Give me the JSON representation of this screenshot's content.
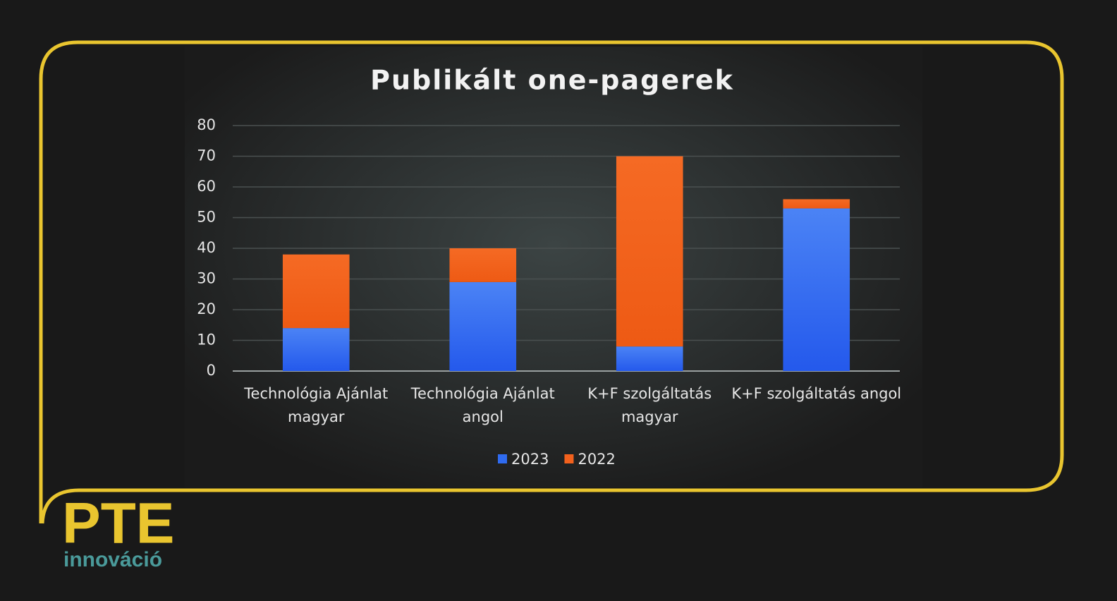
{
  "chart_data": {
    "type": "bar",
    "stacked": true,
    "title": "Publikált one-pagerek",
    "categories": [
      "Technológia Ajánlat magyar",
      "Technológia Ajánlat angol",
      "K+F szolgáltatás magyar",
      "K+F szolgáltatás angol"
    ],
    "series": [
      {
        "name": "2023",
        "color": "#2f6bf0",
        "values": [
          14,
          29,
          8,
          53
        ]
      },
      {
        "name": "2022",
        "color": "#f2611d",
        "values": [
          24,
          11,
          62,
          3
        ]
      }
    ],
    "ylim": [
      0,
      80
    ],
    "yticks": [
      0,
      10,
      20,
      30,
      40,
      50,
      60,
      70,
      80
    ],
    "grid": true,
    "legend": "bottom"
  },
  "logo": {
    "name": "PTE",
    "subtitle": "innováció"
  }
}
